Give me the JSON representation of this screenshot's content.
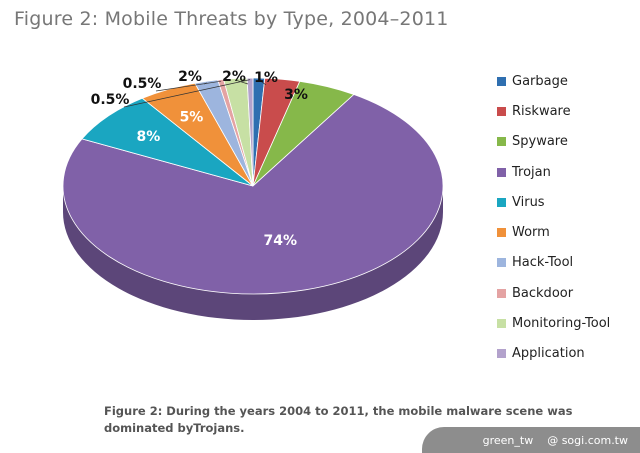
{
  "title": "Figure 2: Mobile Threats by Type, 2004–2011",
  "caption": "Figure 2: During the years 2004 to 2011, the mobile malware scene was dominated byTrojans.",
  "watermark": {
    "user": "green_tw",
    "site": "@ sogi.com.tw"
  },
  "chart_data": {
    "type": "pie",
    "title": "Figure 2: Mobile Threats by Type, 2004–2011",
    "legend_position": "right",
    "three_d": true,
    "slices": [
      {
        "name": "Garbage",
        "value": 1,
        "label": "1%",
        "color": "#2f6fb0"
      },
      {
        "name": "Riskware",
        "value": 3,
        "label": "3%",
        "color": "#c94c4c"
      },
      {
        "name": "Spyware",
        "value": 5,
        "label": "",
        "color": "#86b84a"
      },
      {
        "name": "Trojan",
        "value": 74,
        "label": "74%",
        "color": "#8061a8"
      },
      {
        "name": "Virus",
        "value": 8,
        "label": "8%",
        "color": "#1aa6c1"
      },
      {
        "name": "Worm",
        "value": 5,
        "label": "5%",
        "color": "#f0913a"
      },
      {
        "name": "Hack-Tool",
        "value": 2,
        "label": "2%",
        "color": "#9db5de"
      },
      {
        "name": "Backdoor",
        "value": 0.5,
        "label": "0.5%",
        "color": "#e4a3a3"
      },
      {
        "name": "Monitoring-Tool",
        "value": 2,
        "label": "2%",
        "color": "#c7e0a4"
      },
      {
        "name": "Application",
        "value": 0.5,
        "label": "0.5%",
        "color": "#b3a2cc"
      }
    ]
  }
}
